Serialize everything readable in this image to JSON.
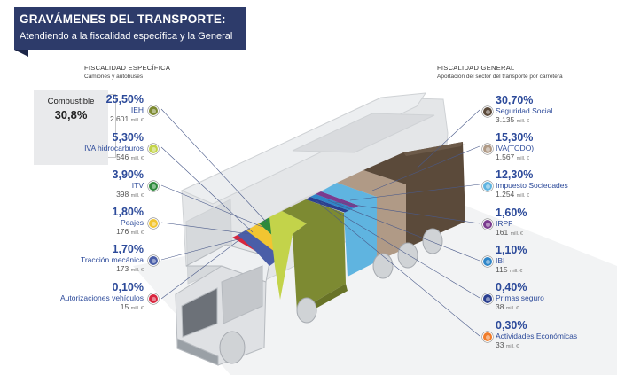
{
  "header": {
    "title": "GRAVÁMENES DEL TRANSPORTE:",
    "subtitle": "Atendiendo a la fiscalidad específica y la General"
  },
  "left_section": {
    "title": "FISCALIDAD ESPECÍFICA",
    "subtitle": "Camiones y autobuses"
  },
  "right_section": {
    "title": "FISCALIDAD GENERAL",
    "subtitle": "Aportación del sector del transporte por carretera"
  },
  "fuel": {
    "label": "Combustible",
    "percent": "30,8%"
  },
  "unit": "mill. €",
  "left_items": [
    {
      "percent": "25,50%",
      "label": "IEH",
      "amount": "2.601",
      "color": "#7d8a32"
    },
    {
      "percent": "5,30%",
      "label": "IVA hidrocarburos",
      "amount": "546",
      "color": "#c3d34a"
    },
    {
      "percent": "3,90%",
      "label": "ITV",
      "amount": "398",
      "color": "#2f8a3c"
    },
    {
      "percent": "1,80%",
      "label": "Peajes",
      "amount": "176",
      "color": "#f2c531"
    },
    {
      "percent": "1,70%",
      "label": "Tracción mecánica",
      "amount": "173",
      "color": "#4a5ea8"
    },
    {
      "percent": "0,10%",
      "label": "Autorizaciones vehículos",
      "amount": "15",
      "color": "#d8263e"
    }
  ],
  "right_items": [
    {
      "percent": "30,70%",
      "label": "Seguridad Social",
      "amount": "3.135",
      "color": "#5b4a3a"
    },
    {
      "percent": "15,30%",
      "label": "IVA(TODO)",
      "amount": "1.567",
      "color": "#b09a86"
    },
    {
      "percent": "12,30%",
      "label": "Impuesto Sociedades",
      "amount": "1.254",
      "color": "#5fb4e0"
    },
    {
      "percent": "1,60%",
      "label": "IRPF",
      "amount": "161",
      "color": "#7b3b8e"
    },
    {
      "percent": "1,10%",
      "label": "IBI",
      "amount": "115",
      "color": "#2f86c8"
    },
    {
      "percent": "0,40%",
      "label": "Primas seguro",
      "amount": "38",
      "color": "#2a3f8f"
    },
    {
      "percent": "0,30%",
      "label": "Actividades Económicas",
      "amount": "33",
      "color": "#f07c2a"
    }
  ]
}
